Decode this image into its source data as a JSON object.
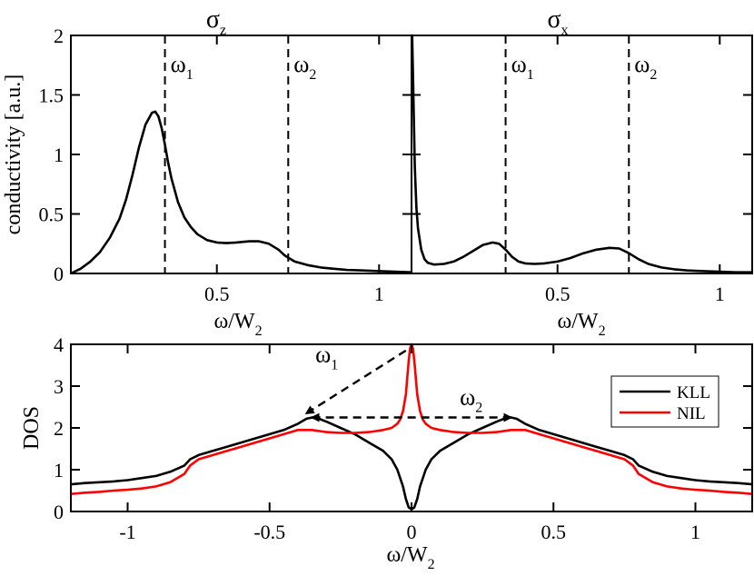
{
  "colors": {
    "KLL": "#000000",
    "NIL": "#ff0000"
  },
  "chart_data": [
    {
      "type": "line",
      "title": "σ",
      "title_sub": "z",
      "xlabel": "ω/W",
      "xlabel_sub": "2",
      "ylabel": "conductivity [a.u.]",
      "xlim": [
        0.05,
        1.1
      ],
      "ylim": [
        0,
        2
      ],
      "xticks": [
        0.5,
        1
      ],
      "xtick_labels": [
        "0.5",
        "1"
      ],
      "yticks": [
        0,
        0.5,
        1,
        1.5,
        2
      ],
      "ytick_labels": [
        "0",
        "0.5",
        "1",
        "1.5",
        "2"
      ],
      "series": [
        {
          "name": "σz",
          "color": "#000000",
          "x": [
            0.05,
            0.08,
            0.11,
            0.14,
            0.17,
            0.2,
            0.22,
            0.24,
            0.26,
            0.28,
            0.3,
            0.31,
            0.32,
            0.33,
            0.34,
            0.35,
            0.36,
            0.38,
            0.4,
            0.42,
            0.44,
            0.47,
            0.5,
            0.53,
            0.56,
            0.6,
            0.63,
            0.66,
            0.69,
            0.71,
            0.74,
            0.78,
            0.82,
            0.86,
            0.9,
            0.95,
            1.0,
            1.05,
            1.1
          ],
          "y": [
            0.0,
            0.04,
            0.1,
            0.18,
            0.3,
            0.46,
            0.62,
            0.83,
            1.06,
            1.25,
            1.35,
            1.36,
            1.32,
            1.22,
            1.08,
            0.93,
            0.8,
            0.6,
            0.47,
            0.39,
            0.33,
            0.28,
            0.26,
            0.255,
            0.26,
            0.27,
            0.27,
            0.25,
            0.2,
            0.15,
            0.1,
            0.07,
            0.05,
            0.04,
            0.03,
            0.025,
            0.02,
            0.015,
            0.01
          ]
        }
      ],
      "annotations": [
        {
          "type": "vline",
          "x": 0.34,
          "label": "ω",
          "sub": "1"
        },
        {
          "type": "vline",
          "x": 0.72,
          "label": "ω",
          "sub": "2"
        }
      ]
    },
    {
      "type": "line",
      "title": "σ",
      "title_sub": "x",
      "xlabel": "ω/W",
      "xlabel_sub": "2",
      "ylabel": "",
      "xlim": [
        0.05,
        1.1
      ],
      "ylim": [
        0,
        2
      ],
      "xticks": [
        0.5,
        1
      ],
      "xtick_labels": [
        "0.5",
        "1"
      ],
      "yticks": [
        0,
        0.5,
        1,
        1.5,
        2
      ],
      "ytick_labels": [],
      "series": [
        {
          "name": "σx",
          "color": "#000000",
          "x": [
            0.05,
            0.052,
            0.055,
            0.06,
            0.065,
            0.07,
            0.08,
            0.09,
            0.1,
            0.12,
            0.15,
            0.18,
            0.21,
            0.24,
            0.27,
            0.3,
            0.32,
            0.34,
            0.36,
            0.38,
            0.4,
            0.43,
            0.46,
            0.5,
            0.54,
            0.58,
            0.62,
            0.66,
            0.69,
            0.72,
            0.75,
            0.78,
            0.82,
            0.86,
            0.9,
            0.95,
            1.0,
            1.05,
            1.1
          ],
          "y": [
            2.0,
            2.0,
            1.6,
            0.9,
            0.55,
            0.38,
            0.2,
            0.12,
            0.09,
            0.075,
            0.08,
            0.1,
            0.14,
            0.19,
            0.24,
            0.26,
            0.25,
            0.2,
            0.14,
            0.1,
            0.085,
            0.08,
            0.085,
            0.1,
            0.13,
            0.17,
            0.2,
            0.215,
            0.21,
            0.17,
            0.12,
            0.08,
            0.05,
            0.035,
            0.025,
            0.02,
            0.015,
            0.01,
            0.01
          ]
        }
      ],
      "annotations": [
        {
          "type": "vline",
          "x": 0.34,
          "label": "ω",
          "sub": "1"
        },
        {
          "type": "vline",
          "x": 0.72,
          "label": "ω",
          "sub": "2"
        }
      ]
    },
    {
      "type": "line",
      "title": "",
      "xlabel": "ω/W",
      "xlabel_sub": "2",
      "ylabel": "DOS",
      "xlim": [
        -1.2,
        1.2
      ],
      "ylim": [
        0,
        4
      ],
      "xticks": [
        -1,
        -0.5,
        0,
        0.5,
        1
      ],
      "xtick_labels": [
        "-1",
        "-0.5",
        "0",
        "0.5",
        "1"
      ],
      "yticks": [
        0,
        1,
        2,
        3,
        4
      ],
      "ytick_labels": [
        "0",
        "1",
        "2",
        "3",
        "4"
      ],
      "legend": {
        "position": "right",
        "entries": [
          "KLL",
          "NIL"
        ]
      },
      "series": [
        {
          "name": "KLL",
          "color": "#000000",
          "x": [
            0,
            0.01,
            0.02,
            0.03,
            0.05,
            0.07,
            0.1,
            0.15,
            0.2,
            0.25,
            0.3,
            0.33,
            0.35,
            0.37,
            0.4,
            0.45,
            0.5,
            0.55,
            0.6,
            0.65,
            0.7,
            0.75,
            0.78,
            0.8,
            0.85,
            0.9,
            0.95,
            1.0,
            1.05,
            1.1,
            1.15,
            1.2
          ],
          "y": [
            0.05,
            0.1,
            0.3,
            0.6,
            1.0,
            1.25,
            1.45,
            1.65,
            1.85,
            2.0,
            2.15,
            2.23,
            2.25,
            2.22,
            2.1,
            1.95,
            1.85,
            1.75,
            1.65,
            1.55,
            1.45,
            1.35,
            1.25,
            1.1,
            0.95,
            0.85,
            0.8,
            0.75,
            0.72,
            0.7,
            0.68,
            0.65
          ]
        },
        {
          "name": "NIL",
          "color": "#ff0000",
          "x": [
            0,
            0.005,
            0.01,
            0.015,
            0.02,
            0.03,
            0.04,
            0.05,
            0.07,
            0.1,
            0.15,
            0.2,
            0.25,
            0.3,
            0.35,
            0.4,
            0.45,
            0.5,
            0.55,
            0.6,
            0.65,
            0.7,
            0.75,
            0.78,
            0.8,
            0.85,
            0.9,
            0.95,
            1.0,
            1.05,
            1.1,
            1.15,
            1.2
          ],
          "y": [
            4.0,
            3.9,
            3.6,
            3.2,
            2.8,
            2.4,
            2.2,
            2.1,
            2.0,
            1.95,
            1.9,
            1.88,
            1.88,
            1.9,
            1.95,
            1.95,
            1.85,
            1.75,
            1.65,
            1.55,
            1.45,
            1.35,
            1.25,
            1.1,
            0.9,
            0.7,
            0.6,
            0.55,
            0.52,
            0.5,
            0.47,
            0.45,
            0.42
          ]
        }
      ],
      "annotations": [
        {
          "type": "arrow",
          "from": [
            -0.02,
            3.85
          ],
          "to": [
            -0.37,
            2.35
          ],
          "label": "ω",
          "sub": "1"
        },
        {
          "type": "double-arrow",
          "from": [
            -0.35,
            2.25
          ],
          "to": [
            0.35,
            2.25
          ],
          "label": "ω",
          "sub": "2"
        }
      ]
    }
  ]
}
